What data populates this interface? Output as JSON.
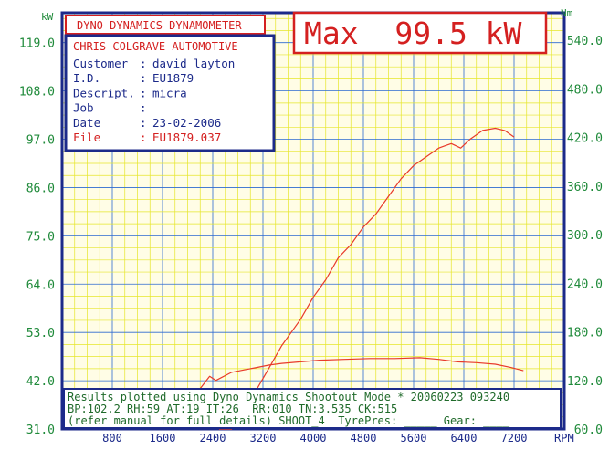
{
  "header": {
    "title": "DYNO DYNAMICS DYNAMOMETER",
    "max_readout": "Max  99.5 kW"
  },
  "info_panel": {
    "shop": "CHRIS COLGRAVE AUTOMOTIVE",
    "rows": [
      {
        "label": "Customer",
        "value": "david layton"
      },
      {
        "label": "I.D.",
        "value": "EU1879"
      },
      {
        "label": "Descript.",
        "value": "micra"
      },
      {
        "label": "Job",
        "value": ""
      },
      {
        "label": "Date",
        "value": "23-02-2006"
      },
      {
        "label": "File",
        "value": "EU1879.037"
      }
    ]
  },
  "footer": {
    "line1": "Results plotted using Dyno Dynamics Shootout Mode * 20060223 093240",
    "line2": "BP:102.2 RH:59 AT:19 IT:26  RR:010 TN:3.535 CK:515",
    "line3": "(refer manual for full details) SHOOT_4  TyrePres: _____ Gear: ____"
  },
  "colors": {
    "grid": "#e6e62a",
    "frame": "#1c2a8a",
    "curve": "#e83a2a",
    "axis_text": "#1f8a3a",
    "title_red": "#d42020",
    "background": "#fffde6"
  },
  "chart_data": {
    "type": "line",
    "xlabel": "RPM",
    "ylabel_left": "kW",
    "ylabel_right": "Nm",
    "x_ticks": [
      "800",
      "1600",
      "2400",
      "3200",
      "4000",
      "4800",
      "5600",
      "6400",
      "7200"
    ],
    "y_left_ticks": [
      "31.0",
      "42.0",
      "53.0",
      "64.0",
      "75.0",
      "86.0",
      "97.0",
      "108.0",
      "119.0"
    ],
    "y_right_ticks": [
      "60.0",
      "120.0",
      "180.0",
      "240.0",
      "300.0",
      "360.0",
      "420.0",
      "480.0",
      "540.0"
    ],
    "xlim": [
      0,
      8000
    ],
    "ylim_left": [
      31,
      125.8
    ],
    "ylim_right": [
      60,
      574
    ],
    "series": [
      {
        "axis": "left",
        "points": [
          [
            2500,
            26
          ],
          [
            2700,
            31
          ],
          [
            2900,
            35
          ],
          [
            3100,
            40
          ],
          [
            3300,
            45
          ],
          [
            3500,
            50
          ],
          [
            3800,
            56
          ],
          [
            4000,
            61
          ],
          [
            4200,
            65
          ],
          [
            4400,
            70
          ],
          [
            4600,
            73
          ],
          [
            4800,
            77
          ],
          [
            5000,
            80
          ],
          [
            5200,
            84
          ],
          [
            5400,
            88
          ],
          [
            5600,
            91
          ],
          [
            5800,
            93
          ],
          [
            6000,
            95
          ],
          [
            6100,
            95.5
          ],
          [
            6200,
            96
          ],
          [
            6350,
            95
          ],
          [
            6500,
            97
          ],
          [
            6700,
            99
          ],
          [
            6900,
            99.5
          ],
          [
            7050,
            99
          ],
          [
            7200,
            97.5
          ]
        ]
      },
      {
        "axis": "right",
        "points": [
          [
            2000,
            80
          ],
          [
            2200,
            110
          ],
          [
            2350,
            125
          ],
          [
            2450,
            120
          ],
          [
            2700,
            130
          ],
          [
            2900,
            133
          ],
          [
            3100,
            136
          ],
          [
            3300,
            139
          ],
          [
            3500,
            141
          ],
          [
            3800,
            143
          ],
          [
            4100,
            145
          ],
          [
            4500,
            146
          ],
          [
            4900,
            147
          ],
          [
            5300,
            147
          ],
          [
            5700,
            148
          ],
          [
            6000,
            146
          ],
          [
            6300,
            143
          ],
          [
            6600,
            142
          ],
          [
            6900,
            140
          ],
          [
            7150,
            136
          ],
          [
            7350,
            132
          ]
        ]
      }
    ]
  }
}
